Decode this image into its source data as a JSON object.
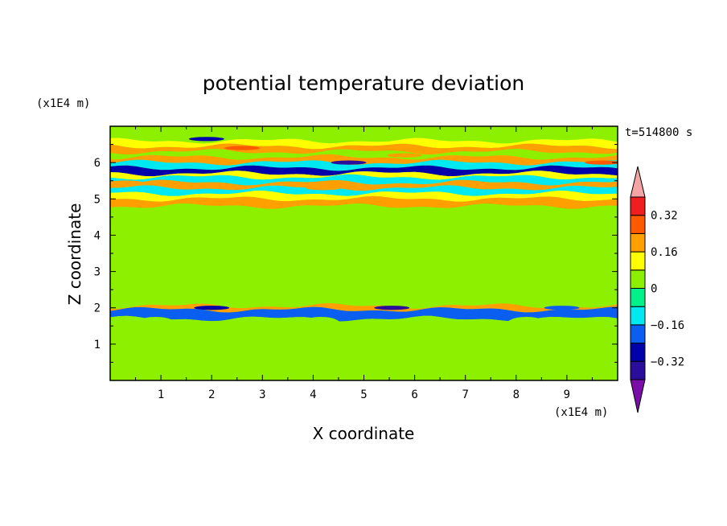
{
  "chart_data": {
    "type": "heatmap",
    "title": "potential temperature deviation",
    "time_label": "t=514800 s",
    "xlabel": "X coordinate",
    "ylabel": "Z coordinate",
    "x_unit_label": "(x1E4 m)",
    "y_unit_label": "(x1E4 m)",
    "xlim": [
      0,
      10
    ],
    "ylim": [
      0,
      7
    ],
    "x_ticks": [
      1,
      2,
      3,
      4,
      5,
      6,
      7,
      8,
      9
    ],
    "y_ticks": [
      1,
      2,
      3,
      4,
      5,
      6
    ],
    "colorbar": {
      "levels": [
        -0.4,
        -0.32,
        -0.24,
        -0.16,
        -0.08,
        0,
        0.08,
        0.16,
        0.24,
        0.32,
        0.4
      ],
      "tick_labels": [
        "0.32",
        "0.16",
        "0",
        "−0.16",
        "−0.32"
      ],
      "tick_values": [
        0.32,
        0.16,
        0,
        -0.16,
        -0.32
      ],
      "colors": [
        "#7a0da8",
        "#2a0d9a",
        "#0000aa",
        "#0a5ff0",
        "#00e8f0",
        "#00f08a",
        "#8cf000",
        "#ffff00",
        "#ffa000",
        "#ff5a00",
        "#f01f1f",
        "#f4a4a4"
      ]
    },
    "field_bands": [
      {
        "z": 6.85,
        "value": 0.0
      },
      {
        "z": 6.6,
        "value": 0.12
      },
      {
        "z": 6.45,
        "value": 0.2
      },
      {
        "z": 6.3,
        "value": 0.05
      },
      {
        "z": 6.15,
        "value": 0.22
      },
      {
        "z": 6.0,
        "value": -0.12
      },
      {
        "z": 5.85,
        "value": -0.25
      },
      {
        "z": 5.7,
        "value": 0.1
      },
      {
        "z": 5.6,
        "value": -0.1
      },
      {
        "z": 5.45,
        "value": 0.18
      },
      {
        "z": 5.3,
        "value": -0.14
      },
      {
        "z": 5.15,
        "value": 0.1
      },
      {
        "z": 5.0,
        "value": 0.16
      },
      {
        "z": 4.8,
        "value": 0.0
      },
      {
        "z": 4.5,
        "value": 0.06
      },
      {
        "z": 4.2,
        "value": 0.0
      },
      {
        "z": 3.9,
        "value": 0.06
      },
      {
        "z": 3.6,
        "value": 0.0
      },
      {
        "z": 3.3,
        "value": 0.06
      },
      {
        "z": 3.0,
        "value": 0.0
      },
      {
        "z": 2.7,
        "value": 0.06
      },
      {
        "z": 2.45,
        "value": 0.0
      },
      {
        "z": 2.25,
        "value": 0.06
      },
      {
        "z": 2.05,
        "value": 0.17
      },
      {
        "z": 1.95,
        "value": -0.2
      },
      {
        "z": 1.7,
        "value": 0.06
      }
    ],
    "convective_plumes": [
      {
        "x": 0.9,
        "value": 0.0
      },
      {
        "x": 2.4,
        "value": 0.0
      },
      {
        "x": 4.15,
        "value": 0.06
      },
      {
        "x": 5.15,
        "value": 0.0
      },
      {
        "x": 6.2,
        "value": 0.06
      },
      {
        "x": 7.1,
        "value": 0.0
      },
      {
        "x": 8.2,
        "value": 0.0
      },
      {
        "x": 9.35,
        "value": 0.0
      }
    ],
    "extrema": [
      {
        "x": 1.9,
        "z": 6.65,
        "value": -0.3
      },
      {
        "x": 4.7,
        "z": 6.0,
        "value": -0.35
      },
      {
        "x": 5.55,
        "z": 2.0,
        "value": -0.35
      },
      {
        "x": 2.0,
        "z": 2.0,
        "value": -0.25
      },
      {
        "x": 8.9,
        "z": 2.0,
        "value": -0.2
      },
      {
        "x": 2.6,
        "z": 6.4,
        "value": 0.26
      },
      {
        "x": 5.8,
        "z": 6.2,
        "value": 0.22
      },
      {
        "x": 9.7,
        "z": 6.0,
        "value": 0.24
      },
      {
        "x": 0.3,
        "z": 5.45,
        "value": 0.2
      },
      {
        "x": 4.2,
        "z": 5.3,
        "value": 0.22
      }
    ]
  }
}
